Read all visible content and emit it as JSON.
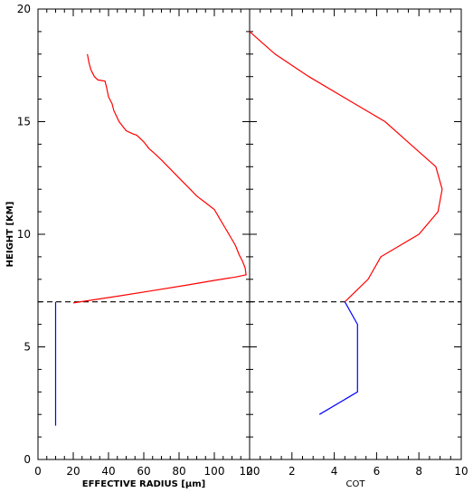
{
  "chart_data": [
    {
      "type": "line",
      "xlabel": "EFFECTIVE RADIUS [μm]",
      "ylabel": "HEIGHT [KM]",
      "xlim": [
        0,
        120
      ],
      "ylim": [
        0,
        20
      ],
      "xticks": [
        "0",
        "20",
        "40",
        "60",
        "80",
        "100",
        "120"
      ],
      "yticks": [
        "0",
        "5",
        "10",
        "15",
        "20"
      ],
      "reference_line": {
        "axis": "y",
        "value": 7,
        "style": "dashed",
        "color": "#000000"
      },
      "series": [
        {
          "color": "#ff0000",
          "points": [
            [
              28,
              18
            ],
            [
              29,
              17.6
            ],
            [
              30,
              17.3
            ],
            [
              32,
              17.0
            ],
            [
              34,
              16.85
            ],
            [
              38,
              16.8
            ],
            [
              39,
              16.5
            ],
            [
              40,
              16.1
            ],
            [
              42,
              15.8
            ],
            [
              43,
              15.5
            ],
            [
              46,
              15.0
            ],
            [
              50,
              14.6
            ],
            [
              54,
              14.45
            ],
            [
              56,
              14.4
            ],
            [
              60,
              14.1
            ],
            [
              63,
              13.8
            ],
            [
              66,
              13.6
            ],
            [
              70,
              13.3
            ],
            [
              75,
              12.9
            ],
            [
              80,
              12.5
            ],
            [
              85,
              12.1
            ],
            [
              90,
              11.7
            ],
            [
              95,
              11.4
            ],
            [
              100,
              11.1
            ],
            [
              103,
              10.7
            ],
            [
              106,
              10.3
            ],
            [
              109,
              9.9
            ],
            [
              112,
              9.5
            ],
            [
              114,
              9.1
            ],
            [
              116,
              8.8
            ],
            [
              117.5,
              8.5
            ],
            [
              118,
              8.2
            ],
            [
              115,
              8.15
            ],
            [
              112,
              8.1
            ],
            [
              100,
              7.95
            ],
            [
              85,
              7.75
            ],
            [
              65,
              7.5
            ],
            [
              45,
              7.25
            ],
            [
              20,
              6.95
            ]
          ]
        },
        {
          "color": "#0000ff",
          "points": [
            [
              10,
              7
            ],
            [
              10,
              1.5
            ]
          ]
        }
      ]
    },
    {
      "type": "line",
      "xlabel": "COT",
      "xlim": [
        0,
        10
      ],
      "ylim": [
        0,
        20
      ],
      "xticks": [
        "0",
        "2",
        "4",
        "6",
        "8",
        "10"
      ],
      "reference_line": {
        "axis": "y",
        "value": 7,
        "style": "dashed",
        "color": "#000000"
      },
      "series": [
        {
          "color": "#ff0000",
          "points": [
            [
              0,
              19
            ],
            [
              1.2,
              18
            ],
            [
              2.8,
              17
            ],
            [
              4.6,
              16
            ],
            [
              6.4,
              15
            ],
            [
              7.6,
              14
            ],
            [
              8.8,
              13
            ],
            [
              9.1,
              12
            ],
            [
              8.9,
              11
            ],
            [
              8.0,
              10
            ],
            [
              6.2,
              9
            ],
            [
              5.6,
              8
            ],
            [
              4.5,
              7
            ]
          ]
        },
        {
          "color": "#0000ff",
          "points": [
            [
              4.5,
              7
            ],
            [
              5.1,
              6
            ],
            [
              5.1,
              3
            ],
            [
              3.3,
              2
            ]
          ]
        }
      ]
    }
  ]
}
